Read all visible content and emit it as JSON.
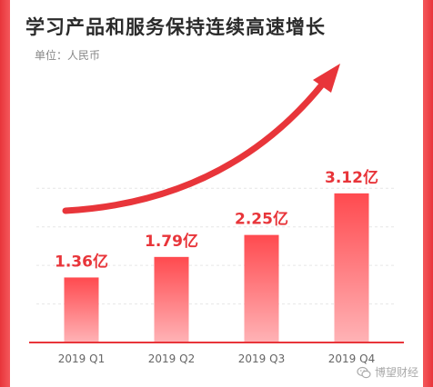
{
  "title": "学习产品和服务保持连续高速增长",
  "unit_label": "单位：人民币",
  "watermark": "博望财经",
  "colors": {
    "bar_top": "#ff4a4f",
    "bar_bottom": "#ffb3b6",
    "label": "#e8353a",
    "frame": "#e8353a",
    "arrow": "#e8353a",
    "grid": "#e6e6e6"
  },
  "chart_data": {
    "type": "bar",
    "categories": [
      "2019 Q1",
      "2019 Q2",
      "2019 Q3",
      "2019 Q4"
    ],
    "values": [
      1.36,
      1.79,
      2.25,
      3.12
    ],
    "data_labels": [
      "1.36亿",
      "1.79亿",
      "2.25亿",
      "3.12亿"
    ],
    "xlabel": "",
    "ylabel": "",
    "ylim": [
      0,
      3.5
    ],
    "grid": true,
    "legend": "none",
    "annotation": "upward trend arrow"
  }
}
